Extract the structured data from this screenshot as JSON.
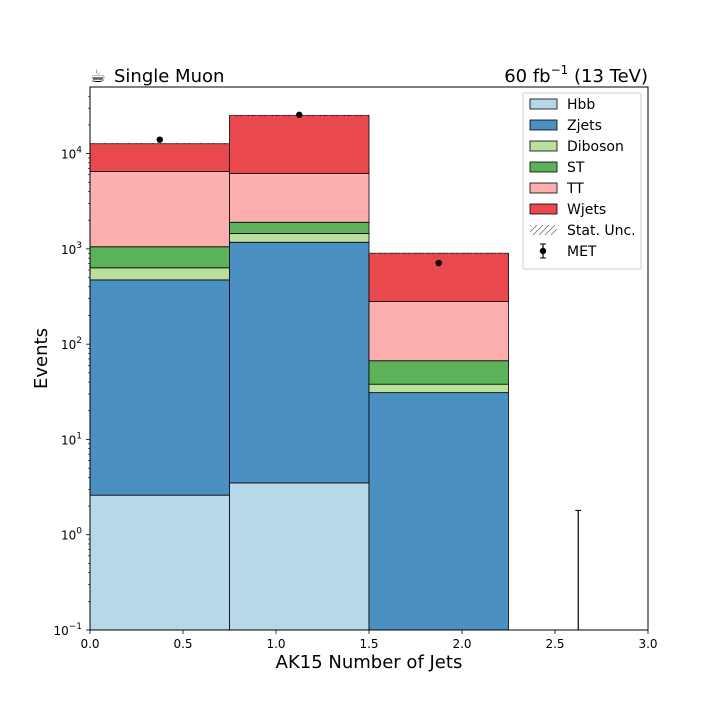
{
  "chart_data": {
    "type": "bar",
    "stacked": true,
    "ylog": true,
    "grid": false,
    "legend_position": "top-right",
    "title_left": "Single Muon",
    "title_left_icon": "coffee-cup-icon",
    "title_right_value": "60 fb",
    "title_right_exponent": "−1",
    "title_right_suffix": " (13 TeV)",
    "xlabel": "AK15 Number of Jets",
    "ylabel": "Events",
    "xlim": [
      0.0,
      3.0
    ],
    "ylim": [
      0.1,
      50000
    ],
    "x_ticks": [
      "0.0",
      "0.5",
      "1.0",
      "1.5",
      "2.0",
      "2.5",
      "3.0"
    ],
    "x_tick_values": [
      0.0,
      0.5,
      1.0,
      1.5,
      2.0,
      2.5,
      3.0
    ],
    "y_tick_exponents": [
      "−1",
      "0",
      "1",
      "2",
      "3",
      "4"
    ],
    "y_tick_values": [
      0.1,
      1,
      10,
      100,
      1000,
      10000
    ],
    "bin_edges": [
      0.0,
      0.75,
      1.5,
      2.25,
      3.0
    ],
    "series": [
      {
        "name": "Hbb",
        "color": "#b8d7e9",
        "values": [
          2.6,
          3.5,
          0.0,
          0.0
        ]
      },
      {
        "name": "Zjets",
        "color": "#4a90c2",
        "values": [
          470,
          1170,
          31,
          0.0
        ]
      },
      {
        "name": "Diboson",
        "color": "#b9e09d",
        "values": [
          160,
          280,
          7,
          0.0
        ]
      },
      {
        "name": "ST",
        "color": "#5bb258",
        "values": [
          420,
          450,
          29,
          0.0
        ]
      },
      {
        "name": "TT",
        "color": "#fdaeae",
        "values": [
          5450,
          4300,
          213,
          0.0
        ]
      },
      {
        "name": "Wjets",
        "color": "#e9484c",
        "values": [
          6200,
          19000,
          620,
          0.0
        ]
      }
    ],
    "stat_unc_label": "Stat. Unc.",
    "data_series": {
      "name": "MET",
      "x": [
        0.375,
        1.125,
        1.875,
        2.625
      ],
      "y": [
        14000,
        25500,
        710,
        0.1
      ],
      "yerr_up": [
        120,
        160,
        27,
        1.7
      ]
    }
  }
}
